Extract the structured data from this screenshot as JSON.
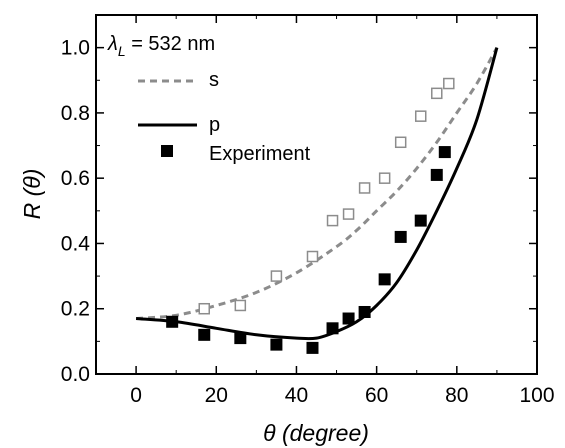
{
  "chart_data": {
    "type": "scatter",
    "xlabel": "θ (degree)",
    "ylabel": "R (θ)",
    "xlim": [
      -10,
      100
    ],
    "ylim": [
      0,
      1.1
    ],
    "xticks": [
      0,
      20,
      40,
      60,
      80,
      100
    ],
    "yticks": [
      0.0,
      0.2,
      0.4,
      0.6,
      0.8,
      1.0
    ],
    "xtick_labels": [
      "0",
      "20",
      "40",
      "60",
      "80",
      "100"
    ],
    "ytick_labels": [
      "0.0",
      "0.2",
      "0.4",
      "0.6",
      "0.8",
      "1.0"
    ],
    "annotation": {
      "symbol": "λ",
      "subscript": "L",
      "text": " = 532 nm"
    },
    "grid": false,
    "legend_position": "top-left",
    "series": [
      {
        "name": "s",
        "kind": "theory-line",
        "style": "dashed",
        "color": "#8c8c8c",
        "x": [
          0,
          10,
          20,
          30,
          40,
          50,
          55,
          60,
          65,
          70,
          75,
          80,
          85,
          90
        ],
        "y": [
          0.17,
          0.18,
          0.21,
          0.25,
          0.31,
          0.39,
          0.44,
          0.5,
          0.56,
          0.63,
          0.71,
          0.8,
          0.89,
          1.0
        ]
      },
      {
        "name": "p",
        "kind": "theory-line",
        "style": "solid",
        "color": "#000000",
        "x": [
          0,
          10,
          20,
          30,
          40,
          45,
          50,
          55,
          60,
          65,
          70,
          75,
          80,
          85,
          90
        ],
        "y": [
          0.17,
          0.16,
          0.14,
          0.12,
          0.11,
          0.11,
          0.13,
          0.16,
          0.21,
          0.28,
          0.38,
          0.5,
          0.63,
          0.78,
          1.0
        ]
      },
      {
        "name": "Experiment",
        "kind": "points",
        "marker": "filled-square",
        "color": "#000000",
        "x": [
          9,
          17,
          26,
          35,
          44,
          49,
          53,
          57,
          62,
          66,
          71,
          75,
          77
        ],
        "y": [
          0.16,
          0.12,
          0.11,
          0.09,
          0.08,
          0.14,
          0.17,
          0.19,
          0.29,
          0.42,
          0.47,
          0.61,
          0.68
        ]
      },
      {
        "kind": "points",
        "marker": "open-square",
        "color": "#8c8c8c",
        "x": [
          17,
          26,
          35,
          44,
          49,
          53,
          57,
          62,
          66,
          71,
          75,
          78
        ],
        "y": [
          0.2,
          0.21,
          0.3,
          0.36,
          0.47,
          0.49,
          0.57,
          0.6,
          0.71,
          0.79,
          0.86,
          0.89
        ]
      }
    ]
  }
}
